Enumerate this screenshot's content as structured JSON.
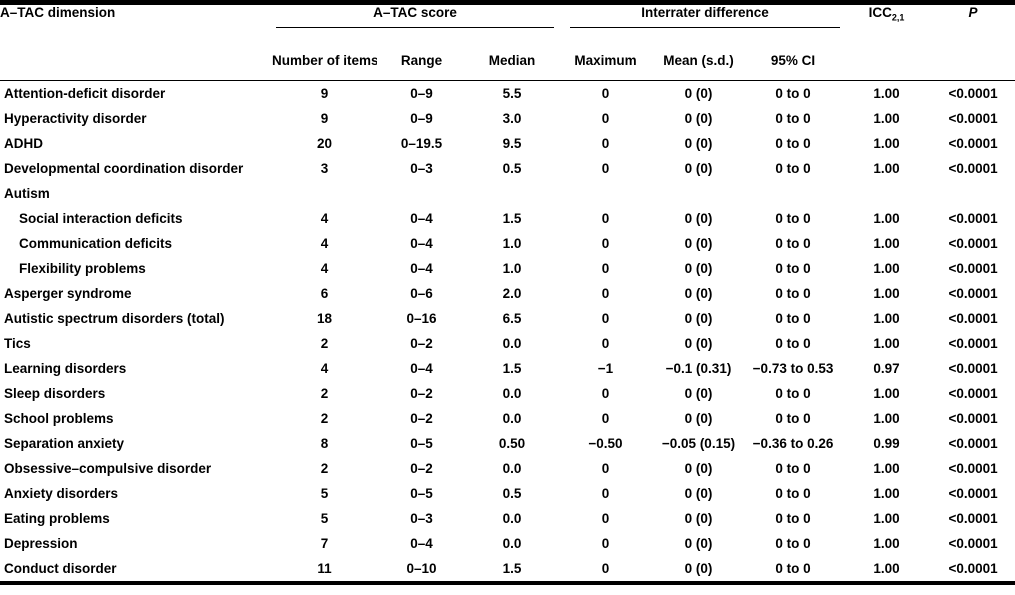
{
  "table": {
    "headers": {
      "dimension": "A–TAC dimension",
      "groups": [
        {
          "label": "A–TAC score",
          "columns": [
            "Number of items",
            "Range",
            "Median"
          ]
        },
        {
          "label": "Interrater difference",
          "columns": [
            "Maximum",
            "Mean (s.d.)",
            "95% CI"
          ]
        }
      ],
      "icc_label": "ICC",
      "icc_subscript": "2,1",
      "p_label": "P"
    },
    "rows": [
      {
        "dimension": "Attention-deficit disorder",
        "indent": false,
        "section_header": false,
        "values": [
          "9",
          "0–9",
          "5.5",
          "0",
          "0 (0)",
          "0 to 0",
          "1.00",
          "<0.0001"
        ]
      },
      {
        "dimension": "Hyperactivity disorder",
        "indent": false,
        "section_header": false,
        "values": [
          "9",
          "0–9",
          "3.0",
          "0",
          "0 (0)",
          "0 to 0",
          "1.00",
          "<0.0001"
        ]
      },
      {
        "dimension": "ADHD",
        "indent": false,
        "section_header": false,
        "values": [
          "20",
          "0–19.5",
          "9.5",
          "0",
          "0 (0)",
          "0 to 0",
          "1.00",
          "<0.0001"
        ]
      },
      {
        "dimension": "Developmental coordination disorder",
        "indent": false,
        "section_header": false,
        "values": [
          "3",
          "0–3",
          "0.5",
          "0",
          "0 (0)",
          "0 to 0",
          "1.00",
          "<0.0001"
        ]
      },
      {
        "dimension": "Autism",
        "indent": false,
        "section_header": true,
        "values": [
          "",
          "",
          "",
          "",
          "",
          "",
          "",
          ""
        ]
      },
      {
        "dimension": "Social interaction deficits",
        "indent": true,
        "section_header": false,
        "values": [
          "4",
          "0–4",
          "1.5",
          "0",
          "0 (0)",
          "0 to 0",
          "1.00",
          "<0.0001"
        ]
      },
      {
        "dimension": "Communication deficits",
        "indent": true,
        "section_header": false,
        "values": [
          "4",
          "0–4",
          "1.0",
          "0",
          "0 (0)",
          "0 to 0",
          "1.00",
          "<0.0001"
        ]
      },
      {
        "dimension": "Flexibility problems",
        "indent": true,
        "section_header": false,
        "values": [
          "4",
          "0–4",
          "1.0",
          "0",
          "0 (0)",
          "0 to 0",
          "1.00",
          "<0.0001"
        ]
      },
      {
        "dimension": "Asperger syndrome",
        "indent": false,
        "section_header": false,
        "values": [
          "6",
          "0–6",
          "2.0",
          "0",
          "0 (0)",
          "0 to 0",
          "1.00",
          "<0.0001"
        ]
      },
      {
        "dimension": "Autistic spectrum disorders (total)",
        "indent": false,
        "section_header": false,
        "values": [
          "18",
          "0–16",
          "6.5",
          "0",
          "0 (0)",
          "0 to 0",
          "1.00",
          "<0.0001"
        ]
      },
      {
        "dimension": "Tics",
        "indent": false,
        "section_header": false,
        "values": [
          "2",
          "0–2",
          "0.0",
          "0",
          "0 (0)",
          "0 to 0",
          "1.00",
          "<0.0001"
        ]
      },
      {
        "dimension": "Learning disorders",
        "indent": false,
        "section_header": false,
        "values": [
          "4",
          "0–4",
          "1.5",
          "−1",
          "−0.1 (0.31)",
          "−0.73 to 0.53",
          "0.97",
          "<0.0001"
        ]
      },
      {
        "dimension": "Sleep disorders",
        "indent": false,
        "section_header": false,
        "values": [
          "2",
          "0–2",
          "0.0",
          "0",
          "0 (0)",
          "0 to 0",
          "1.00",
          "<0.0001"
        ]
      },
      {
        "dimension": "School problems",
        "indent": false,
        "section_header": false,
        "values": [
          "2",
          "0–2",
          "0.0",
          "0",
          "0 (0)",
          "0 to 0",
          "1.00",
          "<0.0001"
        ]
      },
      {
        "dimension": "Separation anxiety",
        "indent": false,
        "section_header": false,
        "values": [
          "8",
          "0–5",
          "0.50",
          "−0.50",
          "−0.05 (0.15)",
          "−0.36 to 0.26",
          "0.99",
          "<0.0001"
        ]
      },
      {
        "dimension": "Obsessive–compulsive disorder",
        "indent": false,
        "section_header": false,
        "values": [
          "2",
          "0–2",
          "0.0",
          "0",
          "0 (0)",
          "0 to 0",
          "1.00",
          "<0.0001"
        ]
      },
      {
        "dimension": "Anxiety disorders",
        "indent": false,
        "section_header": false,
        "values": [
          "5",
          "0–5",
          "0.5",
          "0",
          "0 (0)",
          "0 to 0",
          "1.00",
          "<0.0001"
        ]
      },
      {
        "dimension": "Eating problems",
        "indent": false,
        "section_header": false,
        "values": [
          "5",
          "0–3",
          "0.0",
          "0",
          "0 (0)",
          "0 to 0",
          "1.00",
          "<0.0001"
        ]
      },
      {
        "dimension": "Depression",
        "indent": false,
        "section_header": false,
        "values": [
          "7",
          "0–4",
          "0.0",
          "0",
          "0 (0)",
          "0 to 0",
          "1.00",
          "<0.0001"
        ]
      },
      {
        "dimension": "Conduct disorder",
        "indent": false,
        "section_header": false,
        "values": [
          "11",
          "0–10",
          "1.5",
          "0",
          "0 (0)",
          "0 to 0",
          "1.00",
          "<0.0001"
        ]
      }
    ],
    "colors": {
      "text": "#000000",
      "background": "#ffffff",
      "rule": "#000000"
    }
  }
}
